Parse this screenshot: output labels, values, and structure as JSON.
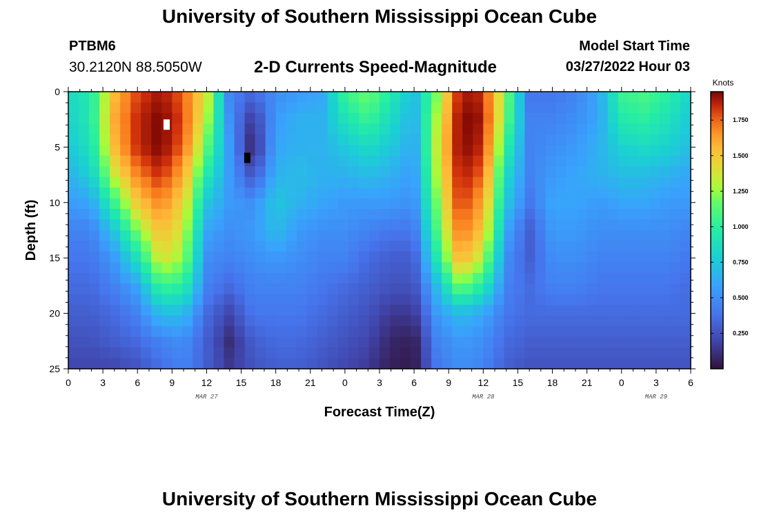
{
  "header": {
    "title": "University of Southern Mississippi Ocean Cube",
    "station": "PTBM6",
    "coordinates": "30.2120N  88.5050W",
    "subtitle": "2-D Currents Speed-Magnitude",
    "model_start_label": "Model Start Time",
    "model_start_value": "03/27/2022 Hour 03"
  },
  "footer": {
    "title": "University of Southern Mississippi Ocean Cube"
  },
  "chart_data": {
    "type": "heatmap",
    "title": "2-D Currents Speed-Magnitude",
    "xlabel": "Forecast Time(Z)",
    "ylabel": "Depth (ft)",
    "x_ticks": [
      "0",
      "3",
      "6",
      "9",
      "12",
      "15",
      "18",
      "21",
      "0",
      "3",
      "6",
      "9",
      "12",
      "15",
      "18",
      "21",
      "0",
      "3",
      "6"
    ],
    "x_hours": [
      0,
      3,
      6,
      9,
      12,
      15,
      18,
      21,
      24,
      27,
      30,
      33,
      36,
      39,
      42,
      45,
      48,
      51,
      54
    ],
    "xlim_hours": [
      0,
      54
    ],
    "date_labels": [
      {
        "label": "MAR 27",
        "hour": 12
      },
      {
        "label": "MAR 28",
        "hour": 36
      },
      {
        "label": "MAR 29",
        "hour": 51
      }
    ],
    "y_ticks": [
      0,
      5,
      10,
      15,
      20,
      25
    ],
    "ylim": [
      0,
      25
    ],
    "y_inverted": true,
    "colorbar": {
      "unit": "Knots",
      "ticks": [
        "0.250",
        "0.500",
        "0.750",
        "1.000",
        "1.250",
        "1.500",
        "1.750"
      ],
      "tick_values": [
        0.25,
        0.5,
        0.75,
        1.0,
        1.25,
        1.5,
        1.75
      ],
      "range": [
        0,
        1.95
      ]
    },
    "speed_grid_knots": {
      "rows_depth_ft": [
        0,
        2.5,
        5,
        7.5,
        10,
        12.5,
        15,
        17.5,
        20,
        22.5,
        25
      ],
      "cols_hour": [
        0,
        2,
        4,
        6,
        8,
        10,
        12,
        14,
        16,
        18,
        20,
        22,
        24,
        26,
        28,
        30,
        32,
        34,
        36,
        38,
        40,
        42,
        44,
        46,
        48,
        50,
        52,
        54
      ],
      "values": [
        [
          0.85,
          0.95,
          1.55,
          1.8,
          1.9,
          1.75,
          1.4,
          0.45,
          0.35,
          0.5,
          0.55,
          0.6,
          1.05,
          1.2,
          0.95,
          0.7,
          1.2,
          1.9,
          1.85,
          1.2,
          0.4,
          0.4,
          0.45,
          0.6,
          1.05,
          1.1,
          1.0,
          0.8
        ],
        [
          0.8,
          0.95,
          1.6,
          1.85,
          1.95,
          1.8,
          1.3,
          0.5,
          0.15,
          0.55,
          0.65,
          0.65,
          0.9,
          1.05,
          0.85,
          0.65,
          1.3,
          1.95,
          1.9,
          1.15,
          0.45,
          0.45,
          0.5,
          0.6,
          0.95,
          1.0,
          0.9,
          0.75
        ],
        [
          0.75,
          0.9,
          1.55,
          1.85,
          1.95,
          1.75,
          1.15,
          0.55,
          0.05,
          0.6,
          0.65,
          0.65,
          0.75,
          0.85,
          0.75,
          0.6,
          1.35,
          1.95,
          1.85,
          1.0,
          0.45,
          0.5,
          0.55,
          0.65,
          0.8,
          0.85,
          0.8,
          0.7
        ],
        [
          0.65,
          0.8,
          1.35,
          1.7,
          1.85,
          1.6,
          0.95,
          0.55,
          0.25,
          0.65,
          0.7,
          0.65,
          0.65,
          0.7,
          0.65,
          0.55,
          1.3,
          1.9,
          1.75,
          0.85,
          0.45,
          0.55,
          0.6,
          0.65,
          0.7,
          0.7,
          0.65,
          0.6
        ],
        [
          0.55,
          0.6,
          1.05,
          1.5,
          1.7,
          1.45,
          0.75,
          0.55,
          0.5,
          0.75,
          0.65,
          0.6,
          0.55,
          0.55,
          0.55,
          0.5,
          1.2,
          1.85,
          1.6,
          0.75,
          0.4,
          0.6,
          0.6,
          0.55,
          0.6,
          0.6,
          0.55,
          0.55
        ],
        [
          0.45,
          0.45,
          0.75,
          1.2,
          1.55,
          1.35,
          0.6,
          0.5,
          0.55,
          0.7,
          0.55,
          0.5,
          0.5,
          0.45,
          0.4,
          0.4,
          1.1,
          1.75,
          1.5,
          0.6,
          0.3,
          0.55,
          0.55,
          0.5,
          0.5,
          0.5,
          0.5,
          0.45
        ],
        [
          0.4,
          0.4,
          0.55,
          0.9,
          1.4,
          1.25,
          0.5,
          0.45,
          0.5,
          0.55,
          0.5,
          0.45,
          0.45,
          0.35,
          0.3,
          0.3,
          0.95,
          1.6,
          1.3,
          0.5,
          0.3,
          0.5,
          0.5,
          0.45,
          0.45,
          0.45,
          0.45,
          0.4
        ],
        [
          0.35,
          0.35,
          0.45,
          0.6,
          1.05,
          1.0,
          0.45,
          0.35,
          0.45,
          0.45,
          0.45,
          0.4,
          0.35,
          0.3,
          0.25,
          0.25,
          0.7,
          1.2,
          0.95,
          0.45,
          0.35,
          0.45,
          0.45,
          0.4,
          0.4,
          0.4,
          0.4,
          0.35
        ],
        [
          0.3,
          0.3,
          0.35,
          0.45,
          0.7,
          0.7,
          0.35,
          0.2,
          0.4,
          0.4,
          0.4,
          0.35,
          0.3,
          0.25,
          0.15,
          0.15,
          0.55,
          0.7,
          0.6,
          0.4,
          0.35,
          0.35,
          0.35,
          0.35,
          0.35,
          0.35,
          0.35,
          0.35
        ],
        [
          0.25,
          0.25,
          0.3,
          0.35,
          0.45,
          0.5,
          0.3,
          0.1,
          0.3,
          0.35,
          0.35,
          0.3,
          0.25,
          0.2,
          0.08,
          0.05,
          0.45,
          0.55,
          0.5,
          0.35,
          0.3,
          0.3,
          0.3,
          0.3,
          0.3,
          0.3,
          0.3,
          0.3
        ],
        [
          0.2,
          0.2,
          0.2,
          0.25,
          0.35,
          0.45,
          0.3,
          0.15,
          0.25,
          0.3,
          0.3,
          0.25,
          0.2,
          0.15,
          0.05,
          0.03,
          0.4,
          0.5,
          0.45,
          0.3,
          0.25,
          0.25,
          0.25,
          0.25,
          0.25,
          0.25,
          0.25,
          0.25
        ]
      ]
    },
    "markers": [
      {
        "hour": 8.5,
        "depth": 3,
        "color": "#ffffff"
      },
      {
        "hour": 15.5,
        "depth": 6,
        "color": "#000000"
      }
    ]
  }
}
